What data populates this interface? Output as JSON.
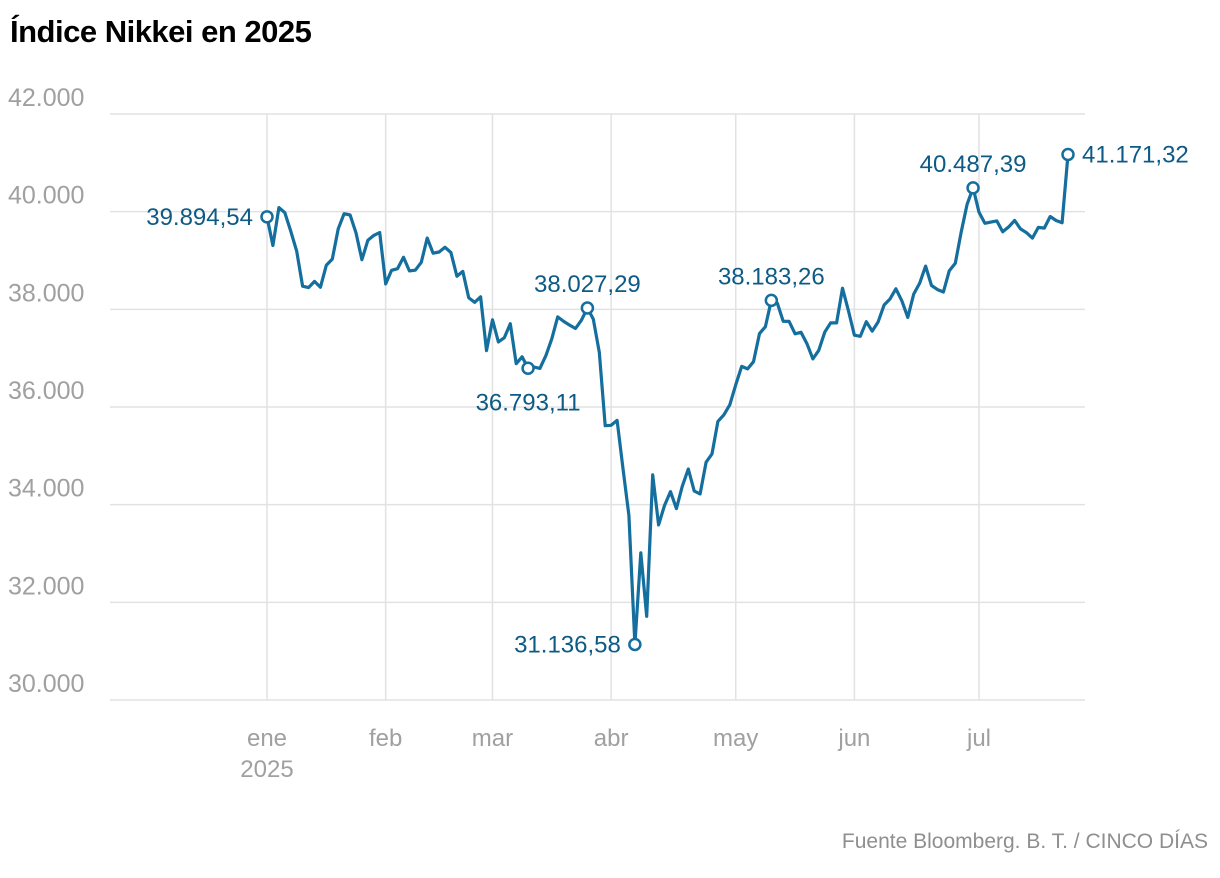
{
  "title": "Índice Nikkei en 2025",
  "source": "Fuente Bloomberg. B. T. / CINCO DÍAS",
  "colors": {
    "line": "#146e9e",
    "annotation": "#0d5a85",
    "marker_fill": "#ffffff",
    "axis_label": "#a0a0a0",
    "grid": "#e2e2e2",
    "title": "#000000",
    "source": "#8f8f8f",
    "background": "#ffffff"
  },
  "chart_data": {
    "type": "line",
    "title": "Índice Nikkei en 2025",
    "xlabel": "",
    "ylabel": "",
    "ylim": [
      30000,
      42000
    ],
    "grid": true,
    "legend": false,
    "y_ticks": [
      {
        "value": 42000,
        "label": "42.000"
      },
      {
        "value": 40000,
        "label": "40.000"
      },
      {
        "value": 38000,
        "label": "38.000"
      },
      {
        "value": 36000,
        "label": "36.000"
      },
      {
        "value": 34000,
        "label": "34.000"
      },
      {
        "value": 32000,
        "label": "32.000"
      },
      {
        "value": 30000,
        "label": "30.000"
      }
    ],
    "x_ticks": [
      {
        "index": 0,
        "label": "ene",
        "sublabel": "2025"
      },
      {
        "index": 20,
        "label": "feb"
      },
      {
        "index": 38,
        "label": "mar"
      },
      {
        "index": 58,
        "label": "abr"
      },
      {
        "index": 79,
        "label": "may"
      },
      {
        "index": 99,
        "label": "jun"
      },
      {
        "index": 120,
        "label": "jul"
      }
    ],
    "values": [
      39894.54,
      39307.05,
      40083.3,
      39981.06,
      39605.09,
      39190.4,
      38474.3,
      38444.58,
      38572.6,
      38451.46,
      38902.5,
      39027.98,
      39646.25,
      39958.87,
      39931.98,
      39565.8,
      39016.87,
      39414.78,
      39513.97,
      39572.49,
      38520.09,
      38798.37,
      38831.48,
      39066.53,
      38787.02,
      38801.17,
      38963.7,
      39461.47,
      39149.43,
      39174.25,
      39270.4,
      39164.61,
      38678.04,
      38776.94,
      38237.79,
      38142.37,
      38256.17,
      37155.5,
      37785.47,
      37331.18,
      37418.24,
      37704.93,
      36887.17,
      37028.27,
      36793.11,
      36819.09,
      36790.03,
      37053.1,
      37396.52,
      37845.42,
      37751.88,
      37677.06,
      37608.49,
      37780.54,
      38027.29,
      37799.97,
      37120.33,
      35617.56,
      35624.48,
      35725.87,
      34735.93,
      33780.58,
      31136.58,
      33012.58,
      31714.03,
      34609.0,
      33585.58,
      33982.36,
      34267.54,
      33920.4,
      34377.6,
      34730.28,
      34279.92,
      34220.6,
      34868.63,
      35039.15,
      35705.74,
      35839.99,
      36045.38,
      36452.3,
      36830.69,
      36779.66,
      36928.63,
      37503.33,
      37644.26,
      38183.26,
      38128.13,
      37755.51,
      37753.72,
      37498.63,
      37529.49,
      37298.98,
      36985.87,
      37160.47,
      37531.53,
      37724.11,
      37722.4,
      38432.98,
      37965.1,
      37470.67,
      37446.81,
      37747.45,
      37554.49,
      37741.61,
      38088.57,
      38211.51,
      38421.19,
      38173.09,
      37834.25,
      38311.33,
      38536.74,
      38885.15,
      38488.34,
      38403.23,
      38354.09,
      38790.56,
      38942.07,
      39584.58,
      40150.79,
      40487.39,
      39986.33,
      39762.48,
      39785.9,
      39810.88,
      39587.68,
      39688.81,
      39821.28,
      39646.36,
      39569.68,
      39459.62,
      39678.02,
      39663.4,
      39901.19,
      39819.11,
      39774.92,
      41171.32
    ],
    "annotations": [
      {
        "index": 0,
        "value": 39894.54,
        "label": "39.894,54",
        "position": "left"
      },
      {
        "index": 44,
        "value": 36793.11,
        "label": "36.793,11",
        "position": "below"
      },
      {
        "index": 54,
        "value": 38027.29,
        "label": "38.027,29",
        "position": "above"
      },
      {
        "index": 62,
        "value": 31136.58,
        "label": "31.136,58",
        "position": "left"
      },
      {
        "index": 85,
        "value": 38183.26,
        "label": "38.183,26",
        "position": "above"
      },
      {
        "index": 119,
        "value": 40487.39,
        "label": "40.487,39",
        "position": "above"
      },
      {
        "index": 135,
        "value": 41171.32,
        "label": "41.171,32",
        "position": "right"
      }
    ]
  }
}
